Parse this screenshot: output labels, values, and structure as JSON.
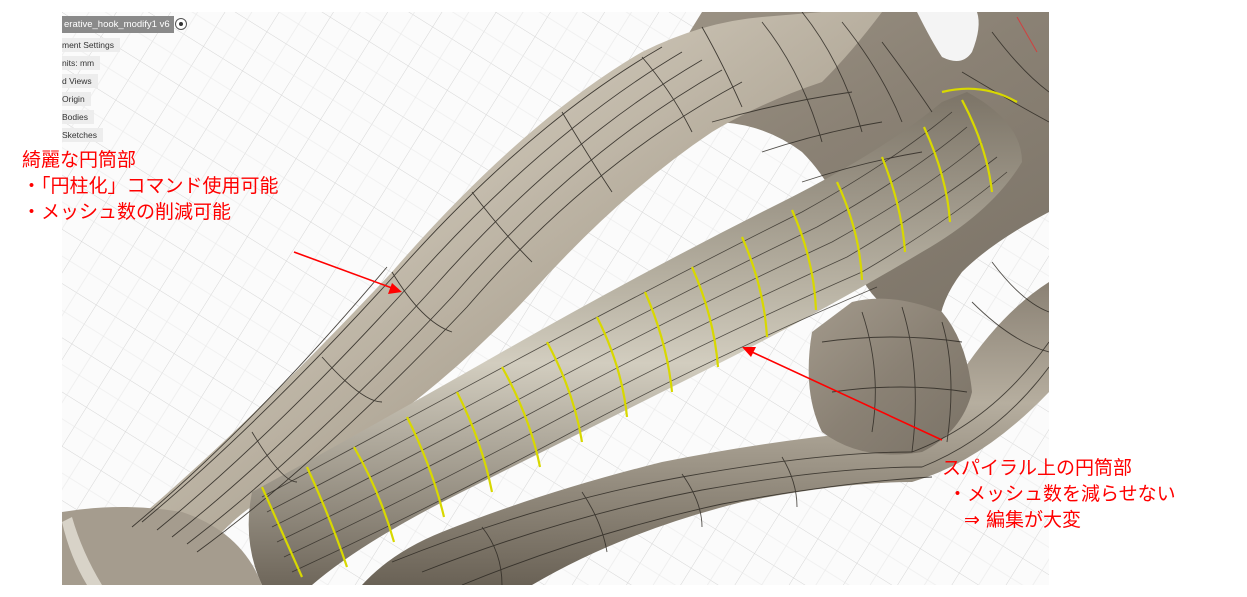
{
  "browser": {
    "doc_title": "erative_hook_modify1 v6",
    "items": [
      "ment Settings",
      "nits: mm",
      "d Views",
      "Origin",
      "Bodies",
      "Sketches"
    ]
  },
  "annotations": {
    "left": {
      "line1": "綺麗な円筒部",
      "line2": "・「円柱化」コマンド使用可能",
      "line3": "・メッシュ数の削減可能"
    },
    "right": {
      "line1": "スパイラル上の円筒部",
      "line2": "・メッシュ数を減らせない",
      "line3": "⇒ 編集が大変"
    }
  },
  "colors": {
    "annotation": "#ff0000",
    "highlight_curves": "#d8d800",
    "model_body": "#9a9184",
    "mesh_lines": "#2a2620"
  }
}
